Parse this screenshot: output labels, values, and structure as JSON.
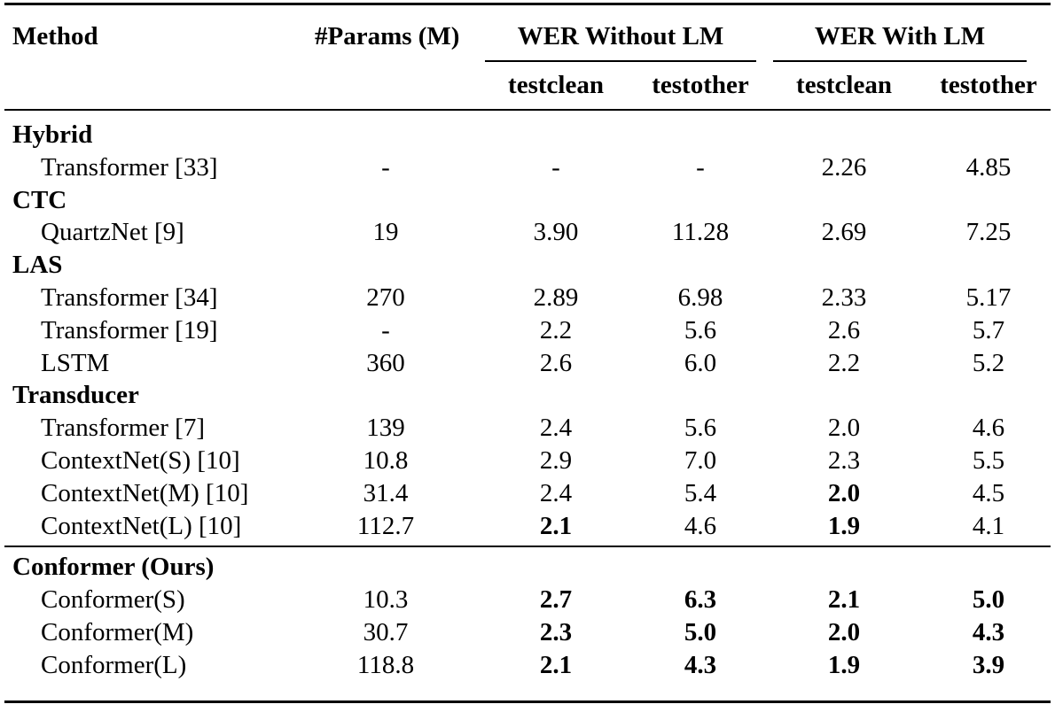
{
  "header": {
    "method": "Method",
    "params": "#Params (M)",
    "group_without_lm": "WER Without LM",
    "group_with_lm": "WER With LM",
    "sub": [
      "testclean",
      "testother",
      "testclean",
      "testother"
    ]
  },
  "rows": [
    {
      "type": "section",
      "label": "Hybrid"
    },
    {
      "type": "data",
      "cells": [
        "Transformer [33]",
        "-",
        "-",
        "-",
        "2.26",
        "4.85"
      ],
      "bold": []
    },
    {
      "type": "section",
      "label": "CTC"
    },
    {
      "type": "data",
      "cells": [
        "QuartzNet  [9]",
        "19",
        "3.90",
        "11.28",
        "2.69",
        "7.25"
      ],
      "bold": []
    },
    {
      "type": "section",
      "label": "LAS"
    },
    {
      "type": "data",
      "cells": [
        "Transformer [34]",
        "270",
        "2.89",
        "6.98",
        "2.33",
        "5.17"
      ],
      "bold": []
    },
    {
      "type": "data",
      "cells": [
        "Transformer [19]",
        "-",
        "2.2",
        "5.6",
        "2.6",
        "5.7"
      ],
      "bold": []
    },
    {
      "type": "data",
      "cells": [
        "LSTM",
        "360",
        "2.6",
        "6.0",
        "2.2",
        "5.2"
      ],
      "bold": []
    },
    {
      "type": "section",
      "label": "Transducer"
    },
    {
      "type": "data",
      "cells": [
        "Transformer [7]",
        "139",
        "2.4",
        "5.6",
        "2.0",
        "4.6"
      ],
      "bold": []
    },
    {
      "type": "data",
      "cells": [
        "ContextNet(S) [10]",
        "10.8",
        "2.9",
        "7.0",
        "2.3",
        "5.5"
      ],
      "bold": []
    },
    {
      "type": "data",
      "cells": [
        "ContextNet(M) [10]",
        "31.4",
        "2.4",
        "5.4",
        "2.0",
        "4.5"
      ],
      "bold": [
        4
      ]
    },
    {
      "type": "data",
      "cells": [
        "ContextNet(L) [10]",
        "112.7",
        "2.1",
        "4.6",
        "1.9",
        "4.1"
      ],
      "bold": [
        2,
        4
      ]
    },
    {
      "type": "section",
      "label": "Conformer (Ours)",
      "rule_before": true
    },
    {
      "type": "data",
      "cells": [
        "Conformer(S)",
        "10.3",
        "2.7",
        "6.3",
        "2.1",
        "5.0"
      ],
      "bold": [
        2,
        3,
        4,
        5
      ]
    },
    {
      "type": "data",
      "cells": [
        "Conformer(M)",
        "30.7",
        "2.3",
        "5.0",
        "2.0",
        "4.3"
      ],
      "bold": [
        2,
        3,
        4,
        5
      ]
    },
    {
      "type": "data",
      "cells": [
        "Conformer(L)",
        "118.8",
        "2.1",
        "4.3",
        "1.9",
        "3.9"
      ],
      "bold": [
        2,
        3,
        4,
        5
      ]
    }
  ]
}
